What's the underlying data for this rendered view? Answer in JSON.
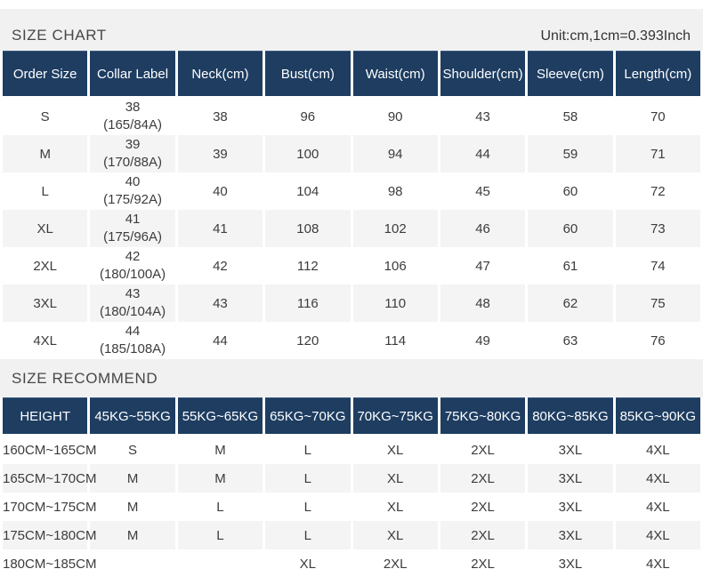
{
  "theme": {
    "header_navy": "#1e3d61",
    "band_gray": "#f1f1f1",
    "stripe_gray": "#f4f4f4",
    "header_text": "#ffffff",
    "body_text": "#3c3c3c"
  },
  "size_chart": {
    "title": "SIZE CHART",
    "unit_note": "Unit:cm,1cm=0.393Inch",
    "columns": [
      "Order Size",
      "Collar Label",
      "Neck(cm)",
      "Bust(cm)",
      "Waist(cm)",
      "Shoulder(cm)",
      "Sleeve(cm)",
      "Length(cm)"
    ],
    "rows": [
      {
        "order_size": "S",
        "collar_label": [
          "38",
          "(165/84A)"
        ],
        "values": [
          "38",
          "96",
          "90",
          "43",
          "58",
          "70"
        ]
      },
      {
        "order_size": "M",
        "collar_label": [
          "39",
          "(170/88A)"
        ],
        "values": [
          "39",
          "100",
          "94",
          "44",
          "59",
          "71"
        ]
      },
      {
        "order_size": "L",
        "collar_label": [
          "40",
          "(175/92A)"
        ],
        "values": [
          "40",
          "104",
          "98",
          "45",
          "60",
          "72"
        ]
      },
      {
        "order_size": "XL",
        "collar_label": [
          "41",
          "(175/96A)"
        ],
        "values": [
          "41",
          "108",
          "102",
          "46",
          "60",
          "73"
        ]
      },
      {
        "order_size": "2XL",
        "collar_label": [
          "42",
          "(180/100A)"
        ],
        "values": [
          "42",
          "112",
          "106",
          "47",
          "61",
          "74"
        ]
      },
      {
        "order_size": "3XL",
        "collar_label": [
          "43",
          "(180/104A)"
        ],
        "values": [
          "43",
          "116",
          "110",
          "48",
          "62",
          "75"
        ]
      },
      {
        "order_size": "4XL",
        "collar_label": [
          "44",
          "(185/108A)"
        ],
        "values": [
          "44",
          "120",
          "114",
          "49",
          "63",
          "76"
        ]
      }
    ]
  },
  "size_recommend": {
    "title": "SIZE RECOMMEND",
    "columns": [
      "HEIGHT",
      "45KG~55KG",
      "55KG~65KG",
      "65KG~70KG",
      "70KG~75KG",
      "75KG~80KG",
      "80KG~85KG",
      "85KG~90KG"
    ],
    "rows": [
      {
        "height": "160CM~165CM",
        "cells": [
          "S",
          "M",
          "L",
          "XL",
          "2XL",
          "3XL",
          "4XL"
        ]
      },
      {
        "height": "165CM~170CM",
        "cells": [
          "M",
          "M",
          "L",
          "XL",
          "2XL",
          "3XL",
          "4XL"
        ]
      },
      {
        "height": "170CM~175CM",
        "cells": [
          "M",
          "L",
          "L",
          "XL",
          "2XL",
          "3XL",
          "4XL"
        ]
      },
      {
        "height": "175CM~180CM",
        "cells": [
          "M",
          "L",
          "L",
          "XL",
          "2XL",
          "3XL",
          "4XL"
        ]
      },
      {
        "height": "180CM~185CM",
        "cells": [
          "",
          "",
          "XL",
          "2XL",
          "2XL",
          "3XL",
          "4XL"
        ]
      }
    ]
  }
}
